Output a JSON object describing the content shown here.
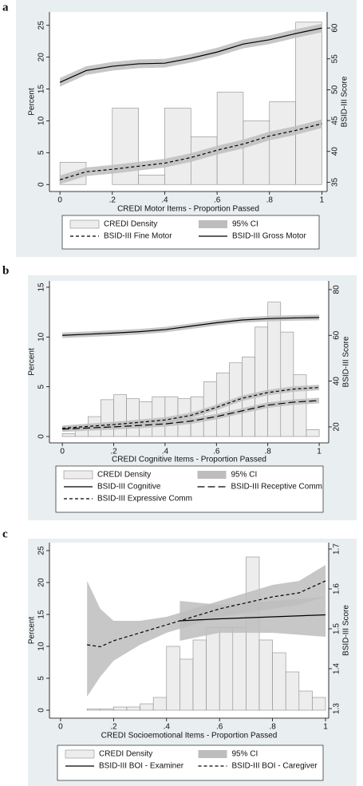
{
  "chart_data": [
    {
      "type": "histogram_line",
      "label": "a",
      "xlabel": "CREDI Motor Items - Proportion Passed",
      "ylabel": "Percent",
      "y2label": "BSID-III Score",
      "xlim": [
        -0.04,
        1.02
      ],
      "xticks": [
        0,
        {
          "value": 0.2,
          "label": ".2"
        },
        {
          "value": 0.4,
          "label": ".4"
        },
        {
          "value": 0.6,
          "label": ".6"
        },
        {
          "value": 0.8,
          "label": ".8"
        },
        1
      ],
      "ylim": [
        -1.1,
        27.1
      ],
      "yticks": [
        0,
        5,
        10,
        15,
        20,
        25
      ],
      "y2lim": [
        33.5,
        62.6
      ],
      "y2ticks": [
        35,
        40,
        45,
        50,
        55,
        60
      ],
      "histogram": {
        "name": "CREDI Density",
        "color": "#ededed",
        "edgecolor": "#8a8a8a",
        "bins": [
          0,
          0.1,
          0.2,
          0.3,
          0.4,
          0.5,
          0.6,
          0.7,
          0.8,
          0.9,
          1.0
        ],
        "values": [
          3.5,
          0,
          12,
          1.5,
          12,
          7.5,
          14.5,
          10,
          13,
          25.5
        ]
      },
      "ci": {
        "name": "95% CI",
        "color": "#bdbdbd"
      },
      "series": [
        {
          "name": "BSID-III Fine Motor",
          "axis": "y2",
          "color": "#000000",
          "dash": "dashed",
          "x": [
            0,
            0.1,
            0.2,
            0.3,
            0.4,
            0.5,
            0.6,
            0.7,
            0.8,
            0.9,
            1.0
          ],
          "values": [
            35.4,
            36.7,
            37.1,
            37.6,
            38.1,
            39.0,
            40.2,
            41.2,
            42.5,
            43.4,
            44.5
          ],
          "lower": [
            34.7,
            36.0,
            36.4,
            36.9,
            37.4,
            38.3,
            39.5,
            40.5,
            41.8,
            42.7,
            43.8
          ],
          "upper": [
            36.1,
            37.4,
            37.8,
            38.3,
            38.8,
            39.7,
            40.9,
            41.9,
            43.2,
            44.1,
            45.2
          ]
        },
        {
          "name": "BSID-III Gross Motor",
          "axis": "y2",
          "color": "#000000",
          "dash": "solid",
          "x": [
            0,
            0.1,
            0.2,
            0.3,
            0.4,
            0.5,
            0.6,
            0.7,
            0.8,
            0.9,
            1.0
          ],
          "values": [
            51.2,
            53.1,
            53.8,
            54.2,
            54.3,
            55.1,
            56.1,
            57.4,
            58.1,
            59.1,
            60.0
          ],
          "lower": [
            50.5,
            52.4,
            53.1,
            53.5,
            53.6,
            54.4,
            55.4,
            56.7,
            57.4,
            58.4,
            59.3
          ],
          "upper": [
            51.9,
            53.8,
            54.5,
            54.9,
            55.0,
            55.8,
            56.8,
            58.1,
            58.8,
            59.8,
            60.7
          ]
        }
      ]
    },
    {
      "type": "histogram_line",
      "label": "b",
      "xlabel": "CREDI Cognitive Items - Proportion Passed",
      "ylabel": "Percent",
      "y2label": "BSID-III Score",
      "xlim": [
        -0.05,
        1.037
      ],
      "xticks": [
        0,
        {
          "value": 0.2,
          "label": ".2"
        },
        {
          "value": 0.4,
          "label": ".4"
        },
        {
          "value": 0.6,
          "label": ".6"
        },
        {
          "value": 0.8,
          "label": ".8"
        },
        1
      ],
      "ylim": [
        -0.64,
        15.64
      ],
      "yticks": [
        0,
        5,
        10,
        15
      ],
      "y2lim": [
        13.0,
        83.8
      ],
      "y2ticks": [
        20,
        40,
        60,
        80
      ],
      "histogram": {
        "name": "CREDI Density",
        "color": "#ededed",
        "edgecolor": "#8a8a8a",
        "bins": [
          0,
          0.05,
          0.1,
          0.15,
          0.2,
          0.25,
          0.3,
          0.35,
          0.4,
          0.45,
          0.5,
          0.55,
          0.6,
          0.65,
          0.7,
          0.75,
          0.8,
          0.85,
          0.9,
          0.95,
          1.0
        ],
        "values": [
          0.3,
          1,
          2,
          3.7,
          4.2,
          3.8,
          3.5,
          4,
          4,
          3.8,
          4,
          5.5,
          6.4,
          7.4,
          8,
          11,
          13.5,
          10.5,
          6.2,
          0.7
        ]
      },
      "ci": {
        "name": "95% CI",
        "color": "#bdbdbd"
      },
      "series": [
        {
          "name": "BSID-III Cognitive",
          "axis": "y2",
          "color": "#000000",
          "dash": "solid",
          "x": [
            0,
            0.1,
            0.2,
            0.3,
            0.4,
            0.5,
            0.6,
            0.7,
            0.8,
            0.9,
            1.0
          ],
          "values": [
            60,
            60.5,
            61,
            61.6,
            62.5,
            64,
            65.5,
            66.7,
            67.3,
            67.6,
            67.8
          ],
          "lower": [
            58.8,
            59.3,
            59.8,
            60.4,
            61.3,
            62.8,
            64.3,
            65.5,
            66.1,
            66.4,
            66.6
          ],
          "upper": [
            61.2,
            61.7,
            62.2,
            62.8,
            63.7,
            65.2,
            66.7,
            67.9,
            68.5,
            68.8,
            69.0
          ]
        },
        {
          "name": "BSID-III Receptive Comm",
          "axis": "y2",
          "color": "#000000",
          "dash": "longdash",
          "x": [
            0,
            0.1,
            0.2,
            0.3,
            0.4,
            0.5,
            0.6,
            0.7,
            0.8,
            0.9,
            1.0
          ],
          "values": [
            19,
            19.5,
            20,
            20.6,
            21.3,
            22.5,
            24.5,
            27,
            29.5,
            30.8,
            31.5
          ],
          "lower": [
            17.8,
            18.3,
            18.8,
            19.4,
            20.1,
            21.3,
            23.3,
            25.8,
            28.3,
            29.6,
            30.3
          ],
          "upper": [
            20.2,
            20.7,
            21.2,
            21.8,
            22.5,
            23.7,
            25.7,
            28.2,
            30.7,
            32.0,
            32.7
          ]
        },
        {
          "name": "BSID-III Expressive Comm",
          "axis": "y2",
          "color": "#000000",
          "dash": "dashed",
          "x": [
            0,
            0.1,
            0.2,
            0.3,
            0.4,
            0.5,
            0.6,
            0.7,
            0.8,
            0.9,
            1.0
          ],
          "values": [
            19.4,
            20.2,
            21,
            22,
            23,
            25,
            28.5,
            32.5,
            35,
            36.5,
            37.2
          ],
          "lower": [
            18.2,
            19.0,
            19.8,
            20.8,
            21.8,
            23.8,
            27.3,
            31.3,
            33.8,
            35.3,
            36.0
          ],
          "upper": [
            20.6,
            21.4,
            22.2,
            23.2,
            24.2,
            26.2,
            29.7,
            33.7,
            36.2,
            37.7,
            38.4
          ]
        }
      ]
    },
    {
      "type": "histogram_line",
      "label": "c",
      "xlabel": "CREDI Socioemotional Items - Proportion Passed",
      "ylabel": "Percent",
      "y2label": "BSID-III Score",
      "xlim": [
        -0.042,
        1.012
      ],
      "xticks": [
        0,
        {
          "value": 0.2,
          "label": ".2"
        },
        {
          "value": 0.4,
          "label": ".4"
        },
        {
          "value": 0.6,
          "label": ".6"
        },
        {
          "value": 0.8,
          "label": ".8"
        },
        1
      ],
      "ylim": [
        -1.25,
        26.25
      ],
      "yticks": [
        0,
        5,
        10,
        15,
        20,
        25
      ],
      "y2lim": [
        1.276,
        1.716
      ],
      "y2ticks": [
        1.3,
        1.4,
        1.5,
        1.6,
        1.7
      ],
      "histogram": {
        "name": "CREDI Density",
        "color": "#ededed",
        "edgecolor": "#8a8a8a",
        "bins": [
          0.1,
          0.15,
          0.2,
          0.25,
          0.3,
          0.35,
          0.4,
          0.45,
          0.5,
          0.55,
          0.6,
          0.65,
          0.7,
          0.75,
          0.8,
          0.85,
          0.9,
          0.95,
          1.0
        ],
        "values": [
          0.2,
          0.2,
          0.5,
          0.5,
          1,
          2,
          10,
          8,
          11,
          13,
          13,
          13,
          24,
          11,
          9,
          6,
          3,
          2
        ]
      },
      "ci": {
        "name": "95% CI",
        "color": "#bdbdbd"
      },
      "series": [
        {
          "name": "BSID-III BOI - Examiner",
          "axis": "y2",
          "color": "#000000",
          "dash": "solid",
          "x": [
            0.45,
            0.6,
            0.8,
            1.0
          ],
          "values": [
            1.52,
            1.525,
            1.53,
            1.535
          ],
          "lower": [
            1.47,
            1.49,
            1.49,
            1.48
          ],
          "upper": [
            1.57,
            1.56,
            1.57,
            1.58
          ]
        },
        {
          "name": "BSID-III BOI - Caregiver",
          "axis": "y2",
          "color": "#000000",
          "dash": "dashed",
          "x": [
            0.1,
            0.15,
            0.2,
            0.3,
            0.4,
            0.5,
            0.6,
            0.7,
            0.8,
            0.9,
            1.0
          ],
          "values": [
            1.46,
            1.455,
            1.47,
            1.49,
            1.51,
            1.53,
            1.55,
            1.565,
            1.58,
            1.59,
            1.62
          ],
          "lower": [
            1.33,
            1.38,
            1.42,
            1.46,
            1.49,
            1.51,
            1.53,
            1.54,
            1.55,
            1.56,
            1.58
          ],
          "upper": [
            1.62,
            1.55,
            1.52,
            1.52,
            1.53,
            1.55,
            1.57,
            1.59,
            1.61,
            1.62,
            1.66
          ]
        }
      ]
    }
  ]
}
